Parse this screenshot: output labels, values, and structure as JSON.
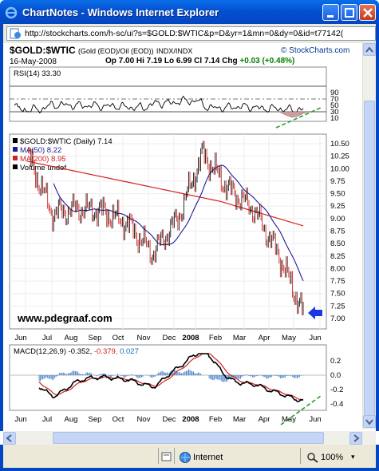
{
  "window": {
    "title": "ChartNotes - Windows Internet Explorer",
    "url": "http://stockcharts.com/h-sc/ui?s=$GOLD:$WTIC&p=D&yr=1&mn=0&dy=0&id=t77142("
  },
  "chart_header": {
    "symbol": "$GOLD:$WTIC",
    "description": "(Gold (EOD)/Oil (EOD))",
    "exchange": "INDX/INDX",
    "brand": "© StockCharts.com",
    "date": "16-May-2008",
    "ohlc": "Op 7.00  Hi 7.19  Lo 6.99  Cl 7.14",
    "chg_label": "Chg",
    "chg_value": "+0.03 (+0.48%)"
  },
  "chart_data": [
    {
      "type": "line",
      "panel": "rsi",
      "legend": "RSI(14) 33.30",
      "y_ticks": [
        "90",
        "70",
        "50",
        "30",
        "10"
      ],
      "overbought": 70,
      "oversold": 30
    },
    {
      "type": "candlestick",
      "panel": "price",
      "legend": [
        {
          "label": "$GOLD:$WTIC (Daily) 7.14",
          "color": "#000000"
        },
        {
          "label": "MA(50) 8.22",
          "color": "#1a1a9a"
        },
        {
          "label": "MA(200) 8.95",
          "color": "#d42020"
        },
        {
          "label": "Volume undef",
          "color": "#000000"
        }
      ],
      "y_ticks": [
        "10.50",
        "10.25",
        "10.00",
        "9.75",
        "9.50",
        "9.25",
        "9.00",
        "8.75",
        "8.50",
        "8.25",
        "8.00",
        "7.75",
        "7.50",
        "7.25",
        "7.00"
      ],
      "x_ticks": [
        "Jun",
        "Jul",
        "Aug",
        "Sep",
        "Oct",
        "Nov",
        "Dec",
        "2008",
        "Feb",
        "Mar",
        "Apr",
        "May",
        "Jun"
      ],
      "watermark": "www.pdegraaf.com",
      "series_approx": [
        {
          "month": "Jun",
          "close": 10.3
        },
        {
          "month": "Jul",
          "close": 9.1
        },
        {
          "month": "Aug",
          "close": 9.2
        },
        {
          "month": "Sep",
          "close": 9.15
        },
        {
          "month": "Oct",
          "close": 8.9
        },
        {
          "month": "Nov",
          "close": 8.3
        },
        {
          "month": "Dec",
          "close": 9.0
        },
        {
          "month": "2008",
          "close": 10.3
        },
        {
          "month": "Feb",
          "close": 9.6
        },
        {
          "month": "Mar",
          "close": 9.2
        },
        {
          "month": "Apr",
          "close": 8.3
        },
        {
          "month": "May",
          "close": 7.1
        }
      ]
    },
    {
      "type": "line",
      "panel": "macd",
      "legend_parts": [
        {
          "text": "MACD(12,26,9) -0.352,",
          "color": "#000000"
        },
        {
          "text": " -0.379,",
          "color": "#d42020"
        },
        {
          "text": " 0.027",
          "color": "#1a6ab8"
        }
      ],
      "y_ticks": [
        "0.2",
        "0.0",
        "-0.2",
        "-0.4"
      ],
      "x_ticks": [
        "Jun",
        "Jul",
        "Aug",
        "Sep",
        "Oct",
        "Nov",
        "Dec",
        "2008",
        "Feb",
        "Mar",
        "Apr",
        "May",
        "Jun"
      ]
    }
  ],
  "status": {
    "zone": "Internet",
    "zoom": "100%"
  }
}
